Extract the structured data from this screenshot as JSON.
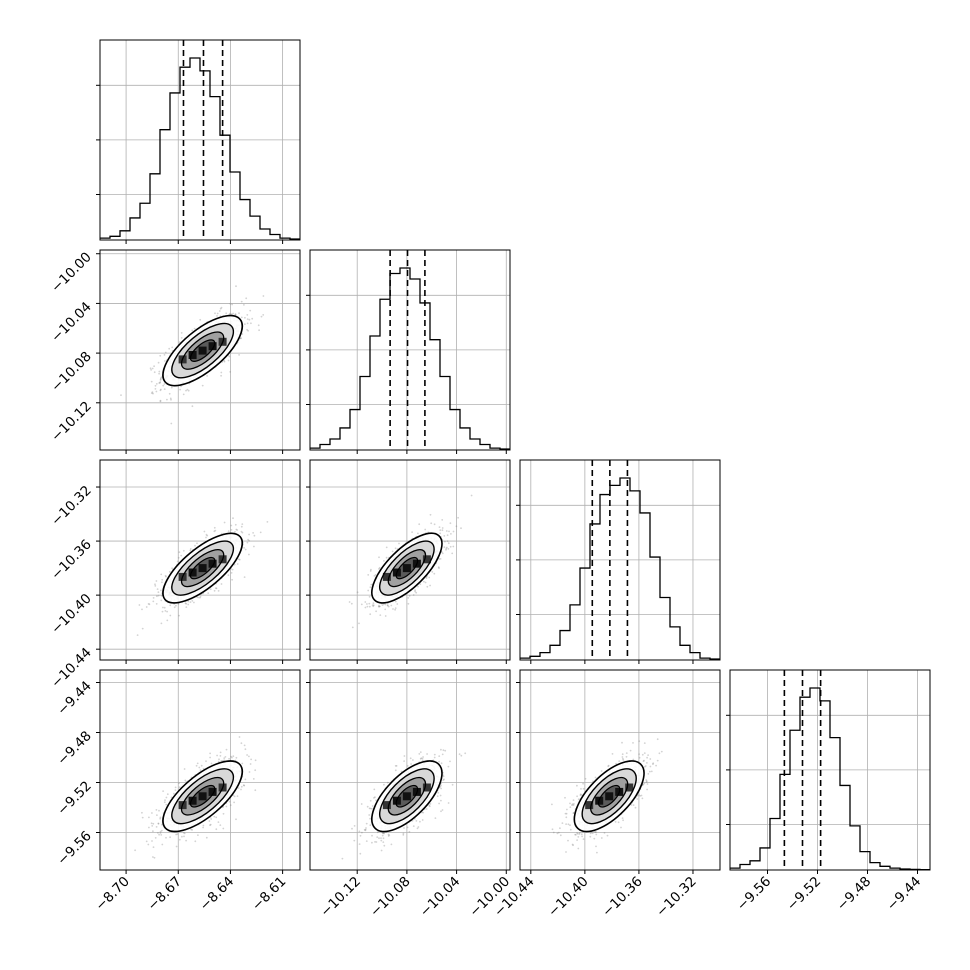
{
  "colors": {
    "background": "#ffffff",
    "histogram_line": "#000000",
    "quantile_line": "#000000",
    "grid": "#b0b0b0",
    "scatter_points": "#808080",
    "density_fill_dark": "#000000",
    "density_fill_light": "#ffffff"
  },
  "chart_data": {
    "type": "corner",
    "grid": true,
    "parameters": [
      {
        "range": [
          -8.715,
          -8.6
        ],
        "ticks": [
          -8.7,
          -8.67,
          -8.64,
          -8.61
        ],
        "tick_labels": [
          "−8.70",
          "−8.67",
          "−8.64",
          "−8.61"
        ],
        "quantiles": [
          -8.667,
          -8.6555,
          -8.6445
        ],
        "hist_counts": [
          1,
          2,
          5,
          12,
          20,
          36,
          60,
          80,
          94,
          99,
          92,
          78,
          57,
          37,
          22,
          13,
          6,
          3,
          1,
          0.5
        ]
      },
      {
        "range": [
          -10.158,
          -9.997
        ],
        "ticks": [
          -10.12,
          -10.08,
          -10.04,
          -10.0
        ],
        "tick_labels": [
          "−10.12",
          "−10.08",
          "−10.04",
          "−10.00"
        ],
        "quantiles": [
          -10.0935,
          -10.0795,
          -10.0655
        ],
        "hist_counts": [
          1,
          3,
          6,
          12,
          22,
          40,
          62,
          82,
          96,
          99,
          93,
          80,
          60,
          40,
          22,
          12,
          6,
          3,
          1,
          0.5
        ]
      },
      {
        "range": [
          -10.448,
          -10.3
        ],
        "ticks": [
          -10.44,
          -10.4,
          -10.36,
          -10.32
        ],
        "tick_labels": [
          "−10.44",
          "−10.40",
          "−10.36",
          "−10.32"
        ],
        "quantiles": [
          -10.3945,
          -10.3815,
          -10.3685
        ],
        "hist_counts": [
          1,
          2,
          4,
          8,
          16,
          30,
          50,
          74,
          90,
          95,
          99,
          92,
          80,
          56,
          34,
          18,
          8,
          4,
          1,
          0.5
        ]
      },
      {
        "range": [
          -9.59,
          -9.43
        ],
        "ticks": [
          -9.56,
          -9.52,
          -9.48,
          -9.44
        ],
        "tick_labels": [
          "−9.56",
          "−9.52",
          "−9.48",
          "−9.44"
        ],
        "quantiles": [
          -9.5465,
          -9.532,
          -9.5175
        ],
        "hist_counts": [
          1,
          3,
          5,
          12,
          28,
          52,
          76,
          94,
          99,
          92,
          72,
          46,
          24,
          10,
          4,
          2,
          1,
          0.5,
          0.3,
          0.2
        ]
      }
    ],
    "pairs": [
      {
        "row": 1,
        "col": 0,
        "center": [
          -8.656,
          -10.078
        ],
        "sd": [
          0.0093,
          0.0115
        ],
        "rho": 0.7
      },
      {
        "row": 2,
        "col": 0,
        "center": [
          -8.656,
          -10.38
        ],
        "sd": [
          0.0093,
          0.0105
        ],
        "rho": 0.72
      },
      {
        "row": 2,
        "col": 1,
        "center": [
          -10.08,
          -10.38
        ],
        "sd": [
          0.0115,
          0.0105
        ],
        "rho": 0.7
      },
      {
        "row": 3,
        "col": 0,
        "center": [
          -8.656,
          -9.531
        ],
        "sd": [
          0.0093,
          0.0115
        ],
        "rho": 0.7
      },
      {
        "row": 3,
        "col": 1,
        "center": [
          -10.08,
          -9.531
        ],
        "sd": [
          0.0115,
          0.0115
        ],
        "rho": 0.65
      },
      {
        "row": 3,
        "col": 2,
        "center": [
          -10.382,
          -9.531
        ],
        "sd": [
          0.0105,
          0.0115
        ],
        "rho": 0.65
      }
    ]
  }
}
